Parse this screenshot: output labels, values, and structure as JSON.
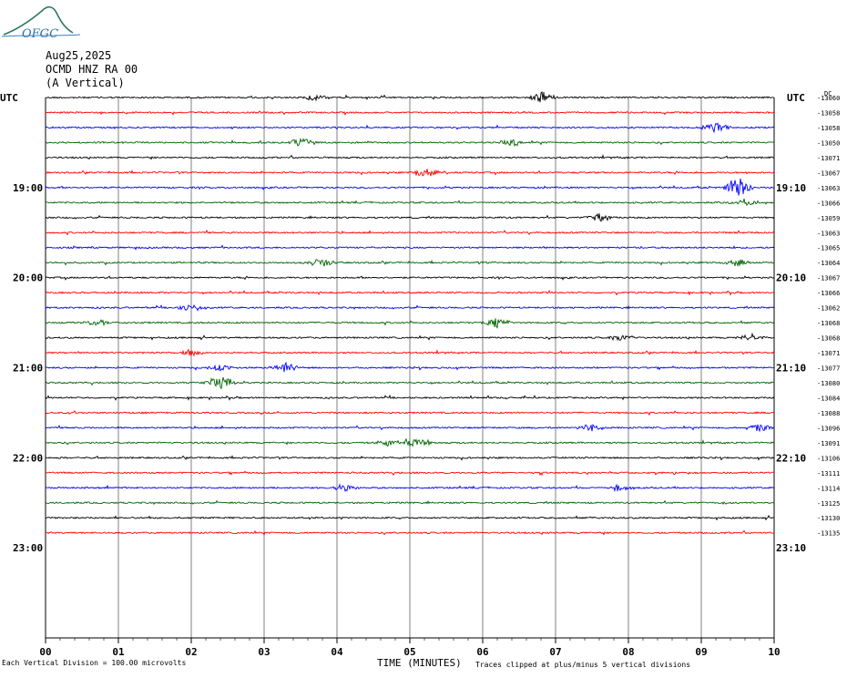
{
  "logo": {
    "text": "OFGC",
    "color": "#2f7a5a"
  },
  "header": {
    "date": "Aug25,2025",
    "station": "OCMD HNZ RA 00",
    "component": "(A Vertical)"
  },
  "left_label_top": "UTC",
  "right_label_top": "UTC",
  "corner_tag": "DC",
  "footer": {
    "scale_note": "Each Vertical Division = 100.00 microvolts",
    "xlabel": "TIME (MINUTES)",
    "clip_note": "Traces clipped at plus/minus 5 vertical divisions"
  },
  "chart_data": {
    "type": "line",
    "title": "",
    "xlabel": "TIME (MINUTES)",
    "xlim": [
      0,
      10
    ],
    "x_ticks": [
      "00",
      "01",
      "02",
      "03",
      "04",
      "05",
      "06",
      "07",
      "08",
      "09",
      "10"
    ],
    "grid": true,
    "trace_colors": [
      "#000000",
      "#ff0000",
      "#0000ff",
      "#006400"
    ],
    "left_time_labels": [
      {
        "row": 6,
        "label": "19:00"
      },
      {
        "row": 12,
        "label": "20:00"
      },
      {
        "row": 18,
        "label": "21:00"
      },
      {
        "row": 24,
        "label": "22:00"
      },
      {
        "row": 30,
        "label": "23:00"
      }
    ],
    "right_time_labels": [
      {
        "row": 6,
        "label": "19:10"
      },
      {
        "row": 12,
        "label": "20:10"
      },
      {
        "row": 18,
        "label": "21:10"
      },
      {
        "row": 24,
        "label": "22:10"
      },
      {
        "row": 30,
        "label": "23:10"
      }
    ],
    "trace_offsets": [
      "-13060",
      "-13058",
      "-13058",
      "-13050",
      "-13071",
      "-13067",
      "-13063",
      "-13066",
      "-13059",
      "-13063",
      "-13065",
      "-13064",
      "-13067",
      "-13066",
      "-13062",
      "-13068",
      "-13068",
      "-13071",
      "-13077",
      "-13080",
      "-13084",
      "-13088",
      "-13096",
      "-13091",
      "-13106",
      "-13111",
      "-13114",
      "-13125",
      "-13130",
      "-13135"
    ],
    "row_count": 36,
    "trace_rows": 30,
    "events": [
      {
        "row": 0,
        "minutes": 6.8,
        "amp": 0.5
      },
      {
        "row": 0,
        "minutes": 3.7,
        "amp": 0.3
      },
      {
        "row": 2,
        "minutes": 9.2,
        "amp": 0.4
      },
      {
        "row": 3,
        "minutes": 3.5,
        "amp": 0.4
      },
      {
        "row": 3,
        "minutes": 6.4,
        "amp": 0.3
      },
      {
        "row": 5,
        "minutes": 5.2,
        "amp": 0.4
      },
      {
        "row": 6,
        "minutes": 9.5,
        "amp": 0.9
      },
      {
        "row": 7,
        "minutes": 9.6,
        "amp": 0.3
      },
      {
        "row": 8,
        "minutes": 7.6,
        "amp": 0.3
      },
      {
        "row": 11,
        "minutes": 3.8,
        "amp": 0.4
      },
      {
        "row": 11,
        "minutes": 9.5,
        "amp": 0.3
      },
      {
        "row": 14,
        "minutes": 2.0,
        "amp": 0.3
      },
      {
        "row": 15,
        "minutes": 6.2,
        "amp": 0.4
      },
      {
        "row": 15,
        "minutes": 0.7,
        "amp": 0.3
      },
      {
        "row": 16,
        "minutes": 7.9,
        "amp": 0.3
      },
      {
        "row": 16,
        "minutes": 9.7,
        "amp": 0.3
      },
      {
        "row": 17,
        "minutes": 2.0,
        "amp": 0.3
      },
      {
        "row": 18,
        "minutes": 3.3,
        "amp": 0.4
      },
      {
        "row": 18,
        "minutes": 2.4,
        "amp": 0.3
      },
      {
        "row": 19,
        "minutes": 2.4,
        "amp": 0.6
      },
      {
        "row": 22,
        "minutes": 7.5,
        "amp": 0.3
      },
      {
        "row": 22,
        "minutes": 9.8,
        "amp": 0.3
      },
      {
        "row": 23,
        "minutes": 5.1,
        "amp": 0.4
      },
      {
        "row": 23,
        "minutes": 4.7,
        "amp": 0.3
      },
      {
        "row": 26,
        "minutes": 7.9,
        "amp": 0.3
      },
      {
        "row": 26,
        "minutes": 4.1,
        "amp": 0.3
      }
    ]
  }
}
